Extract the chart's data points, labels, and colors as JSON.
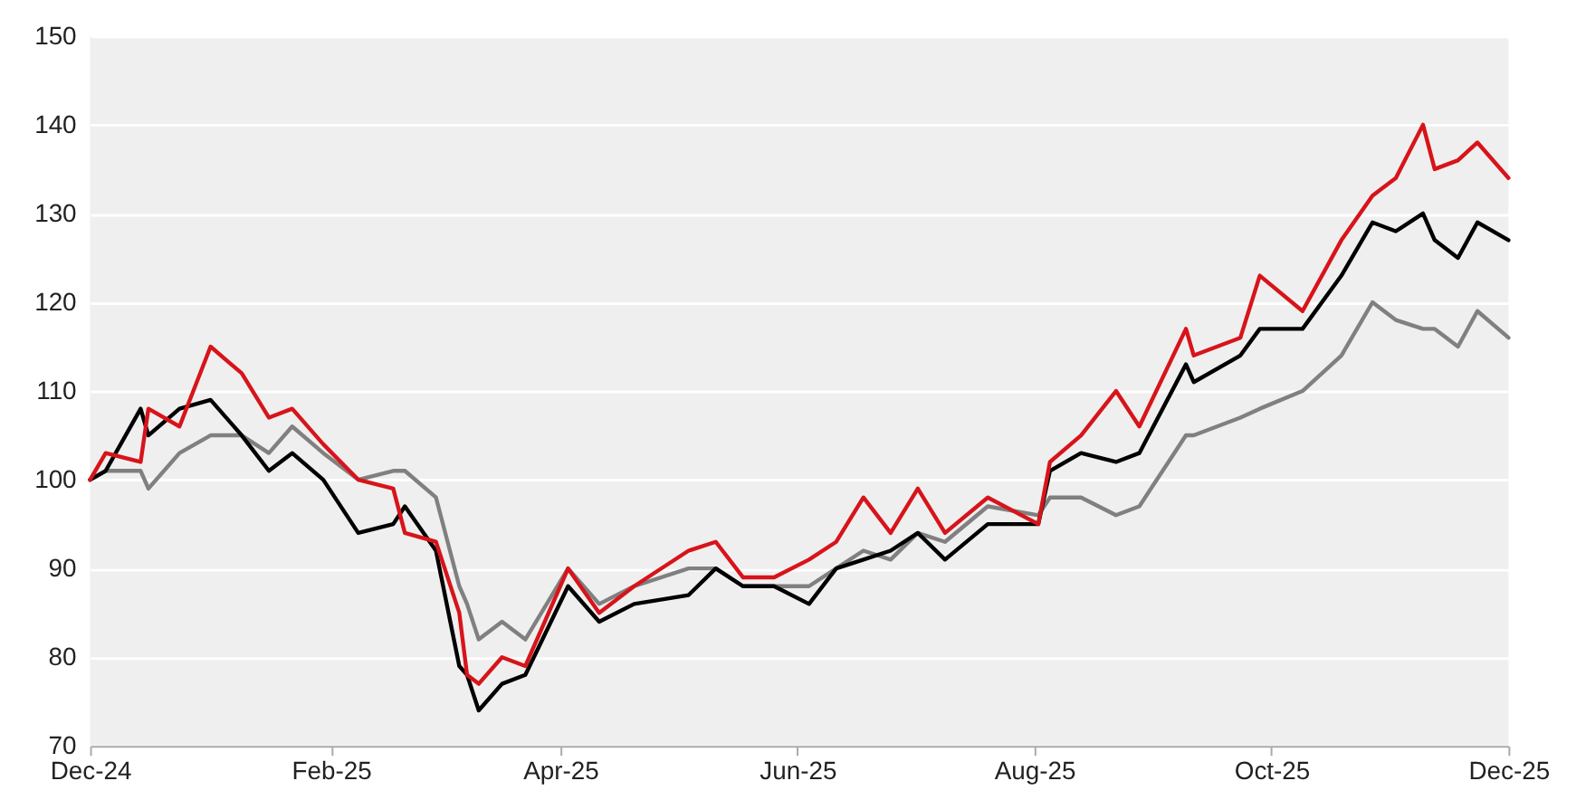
{
  "chart_data": {
    "type": "line",
    "x": [
      "2024-12-01",
      "2024-12-05",
      "2024-12-14",
      "2024-12-16",
      "2024-12-24",
      "2025-01-01",
      "2025-01-09",
      "2025-01-16",
      "2025-01-22",
      "2025-01-30",
      "2025-02-08",
      "2025-02-17",
      "2025-02-20",
      "2025-02-28",
      "2025-03-06",
      "2025-03-08",
      "2025-03-11",
      "2025-03-17",
      "2025-03-23",
      "2025-04-03",
      "2025-04-11",
      "2025-04-20",
      "2025-05-04",
      "2025-05-11",
      "2025-05-18",
      "2025-05-26",
      "2025-06-04",
      "2025-06-11",
      "2025-06-18",
      "2025-06-25",
      "2025-07-02",
      "2025-07-09",
      "2025-07-20",
      "2025-08-02",
      "2025-08-05",
      "2025-08-13",
      "2025-08-22",
      "2025-08-28",
      "2025-09-09",
      "2025-09-11",
      "2025-09-23",
      "2025-09-28",
      "2025-10-09",
      "2025-10-19",
      "2025-10-27",
      "2025-11-02",
      "2025-11-09",
      "2025-11-12",
      "2025-11-18",
      "2025-11-23",
      "2025-12-01"
    ],
    "series": [
      {
        "color": "#808080",
        "values": [
          100,
          101,
          101,
          99,
          103,
          105,
          105,
          103,
          106,
          103,
          100,
          101,
          101,
          98,
          88,
          86,
          82,
          84,
          82,
          90,
          86,
          88,
          90,
          90,
          88,
          88,
          88,
          90,
          92,
          91,
          94,
          93,
          97,
          96,
          98,
          98,
          96,
          97,
          105,
          105,
          107,
          108,
          110,
          114,
          120,
          118,
          117,
          117,
          115,
          119,
          116
        ]
      },
      {
        "color": "#000000",
        "values": [
          100,
          101,
          108,
          105,
          108,
          109,
          105,
          101,
          103,
          100,
          94,
          95,
          97,
          92,
          79,
          78,
          74,
          77,
          78,
          88,
          84,
          86,
          87,
          90,
          88,
          88,
          86,
          90,
          91,
          92,
          94,
          91,
          95,
          95,
          101,
          103,
          102,
          103,
          113,
          111,
          114,
          117,
          117,
          123,
          129,
          128,
          130,
          127,
          125,
          129,
          127
        ]
      },
      {
        "color": "#d7141a",
        "values": [
          100,
          103,
          102,
          108,
          106,
          115,
          112,
          107,
          108,
          104,
          100,
          99,
          94,
          93,
          85,
          78,
          77,
          80,
          79,
          90,
          85,
          88,
          92,
          93,
          89,
          89,
          91,
          93,
          98,
          94,
          99,
          94,
          98,
          95,
          102,
          105,
          110,
          106,
          117,
          114,
          116,
          123,
          119,
          127,
          132,
          134,
          140,
          135,
          136,
          138,
          134
        ]
      }
    ],
    "xlim": [
      "2024-12-01",
      "2025-12-01"
    ],
    "xticks": [
      {
        "value": "2024-12-01",
        "label": "Dec-24"
      },
      {
        "value": "2025-02-01",
        "label": "Feb-25"
      },
      {
        "value": "2025-04-01",
        "label": "Apr-25"
      },
      {
        "value": "2025-06-01",
        "label": "Jun-25"
      },
      {
        "value": "2025-08-01",
        "label": "Aug-25"
      },
      {
        "value": "2025-10-01",
        "label": "Oct-25"
      },
      {
        "value": "2025-12-01",
        "label": "Dec-25"
      }
    ],
    "ylim": [
      70,
      150
    ],
    "yticks": [
      70,
      80,
      90,
      100,
      110,
      120,
      130,
      140,
      150
    ],
    "grid": "y",
    "marker": "none",
    "line_style": "solid"
  }
}
